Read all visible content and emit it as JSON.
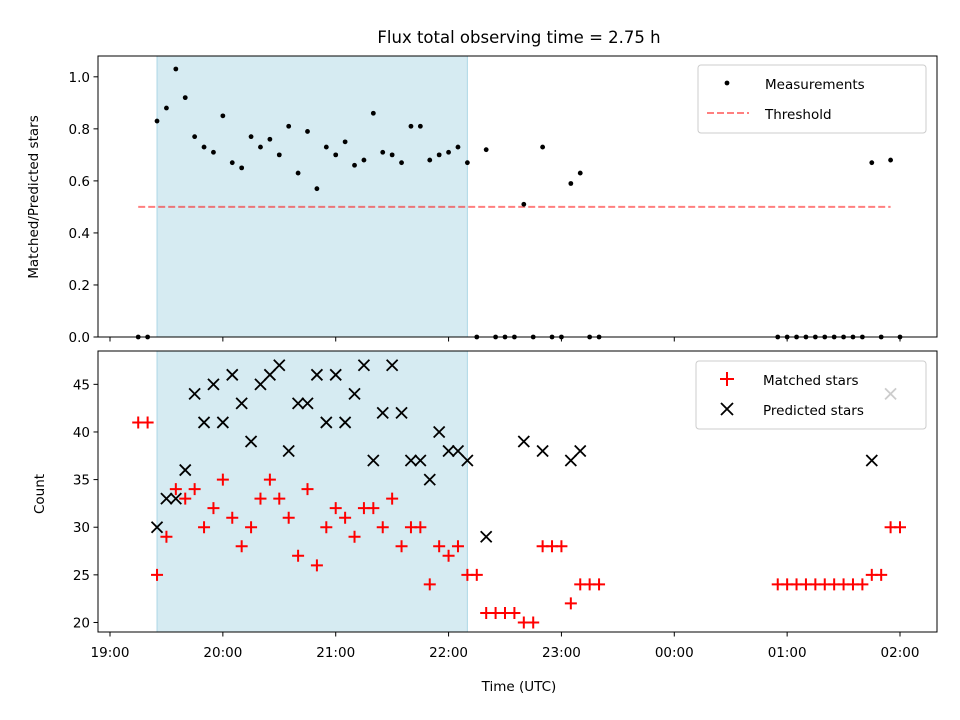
{
  "title": "Flux total observing time = 2.75 h",
  "xlabel": "Time (UTC)",
  "x_tick_labels": [
    "19:00",
    "20:00",
    "21:00",
    "22:00",
    "23:00",
    "00:00",
    "01:00",
    "02:00"
  ],
  "colors": {
    "band": "#add8e6",
    "threshold": "#ff0000",
    "matched": "#ff0000",
    "predicted": "#000000"
  },
  "chart_data": [
    {
      "type": "scatter",
      "ylabel": "Matched/Predicted stars",
      "xlim": [
        "19:00",
        "02:00"
      ],
      "ylim": [
        0,
        1.08
      ],
      "y_ticks": [
        "0.0",
        "0.2",
        "0.4",
        "0.6",
        "0.8",
        "1.0"
      ],
      "legend": {
        "placement": "upper right",
        "entries": [
          "Measurements",
          "Threshold"
        ]
      },
      "shaded_interval": [
        "19:25",
        "22:10"
      ],
      "threshold": {
        "name": "Threshold",
        "value": 0.5,
        "x_range": [
          "19:15",
          "01:55"
        ]
      },
      "series": [
        {
          "name": "Measurements",
          "points": [
            [
              "19:15",
              0.0
            ],
            [
              "19:20",
              0.0
            ],
            [
              "19:25",
              0.83
            ],
            [
              "19:30",
              0.88
            ],
            [
              "19:35",
              1.03
            ],
            [
              "19:40",
              0.92
            ],
            [
              "19:45",
              0.77
            ],
            [
              "19:50",
              0.73
            ],
            [
              "19:55",
              0.71
            ],
            [
              "20:00",
              0.85
            ],
            [
              "20:05",
              0.67
            ],
            [
              "20:10",
              0.65
            ],
            [
              "20:15",
              0.77
            ],
            [
              "20:20",
              0.73
            ],
            [
              "20:25",
              0.76
            ],
            [
              "20:30",
              0.7
            ],
            [
              "20:35",
              0.81
            ],
            [
              "20:40",
              0.63
            ],
            [
              "20:45",
              0.79
            ],
            [
              "20:50",
              0.57
            ],
            [
              "20:55",
              0.73
            ],
            [
              "21:00",
              0.7
            ],
            [
              "21:05",
              0.75
            ],
            [
              "21:10",
              0.66
            ],
            [
              "21:15",
              0.68
            ],
            [
              "21:20",
              0.86
            ],
            [
              "21:25",
              0.71
            ],
            [
              "21:30",
              0.7
            ],
            [
              "21:35",
              0.67
            ],
            [
              "21:40",
              0.81
            ],
            [
              "21:45",
              0.81
            ],
            [
              "21:50",
              0.68
            ],
            [
              "21:55",
              0.7
            ],
            [
              "22:00",
              0.71
            ],
            [
              "22:05",
              0.73
            ],
            [
              "22:10",
              0.67
            ],
            [
              "22:15",
              0.0
            ],
            [
              "22:20",
              0.72
            ],
            [
              "22:25",
              0.0
            ],
            [
              "22:30",
              0.0
            ],
            [
              "22:35",
              0.0
            ],
            [
              "22:40",
              0.51
            ],
            [
              "22:45",
              0.0
            ],
            [
              "22:50",
              0.73
            ],
            [
              "22:55",
              0.0
            ],
            [
              "23:00",
              0.0
            ],
            [
              "23:05",
              0.59
            ],
            [
              "23:10",
              0.63
            ],
            [
              "23:15",
              0.0
            ],
            [
              "23:20",
              0.0
            ],
            [
              "00:55",
              0.0
            ],
            [
              "01:00",
              0.0
            ],
            [
              "01:05",
              0.0
            ],
            [
              "01:10",
              0.0
            ],
            [
              "01:15",
              0.0
            ],
            [
              "01:20",
              0.0
            ],
            [
              "01:25",
              0.0
            ],
            [
              "01:30",
              0.0
            ],
            [
              "01:35",
              0.0
            ],
            [
              "01:40",
              0.0
            ],
            [
              "01:45",
              0.67
            ],
            [
              "01:50",
              0.0
            ],
            [
              "01:55",
              0.68
            ],
            [
              "02:00",
              0.0
            ]
          ]
        }
      ]
    },
    {
      "type": "scatter",
      "ylabel": "Count",
      "xlabel": "Time (UTC)",
      "xlim": [
        "19:00",
        "02:00"
      ],
      "ylim": [
        19,
        48.5
      ],
      "y_ticks": [
        "20",
        "25",
        "30",
        "35",
        "40",
        "45"
      ],
      "legend": {
        "placement": "upper right",
        "entries": [
          "Matched stars",
          "Predicted stars"
        ]
      },
      "shaded_interval": [
        "19:25",
        "22:10"
      ],
      "series": [
        {
          "name": "Matched stars",
          "marker": "+",
          "points": [
            [
              "19:15",
              41
            ],
            [
              "19:20",
              41
            ],
            [
              "19:25",
              25
            ],
            [
              "19:30",
              29
            ],
            [
              "19:35",
              34
            ],
            [
              "19:40",
              33
            ],
            [
              "19:45",
              34
            ],
            [
              "19:50",
              30
            ],
            [
              "19:55",
              32
            ],
            [
              "20:00",
              35
            ],
            [
              "20:05",
              31
            ],
            [
              "20:10",
              28
            ],
            [
              "20:15",
              30
            ],
            [
              "20:20",
              33
            ],
            [
              "20:25",
              35
            ],
            [
              "20:30",
              33
            ],
            [
              "20:35",
              31
            ],
            [
              "20:40",
              27
            ],
            [
              "20:45",
              34
            ],
            [
              "20:50",
              26
            ],
            [
              "20:55",
              30
            ],
            [
              "21:00",
              32
            ],
            [
              "21:05",
              31
            ],
            [
              "21:10",
              29
            ],
            [
              "21:15",
              32
            ],
            [
              "21:20",
              32
            ],
            [
              "21:25",
              30
            ],
            [
              "21:30",
              33
            ],
            [
              "21:35",
              28
            ],
            [
              "21:40",
              30
            ],
            [
              "21:45",
              30
            ],
            [
              "21:50",
              24
            ],
            [
              "21:55",
              28
            ],
            [
              "22:00",
              27
            ],
            [
              "22:05",
              28
            ],
            [
              "22:10",
              25
            ],
            [
              "22:15",
              25
            ],
            [
              "22:20",
              21
            ],
            [
              "22:25",
              21
            ],
            [
              "22:30",
              21
            ],
            [
              "22:35",
              21
            ],
            [
              "22:40",
              20
            ],
            [
              "22:45",
              20
            ],
            [
              "22:50",
              28
            ],
            [
              "22:55",
              28
            ],
            [
              "23:00",
              28
            ],
            [
              "23:05",
              22
            ],
            [
              "23:10",
              24
            ],
            [
              "23:15",
              24
            ],
            [
              "23:20",
              24
            ],
            [
              "00:55",
              24
            ],
            [
              "01:00",
              24
            ],
            [
              "01:05",
              24
            ],
            [
              "01:10",
              24
            ],
            [
              "01:15",
              24
            ],
            [
              "01:20",
              24
            ],
            [
              "01:25",
              24
            ],
            [
              "01:30",
              24
            ],
            [
              "01:35",
              24
            ],
            [
              "01:40",
              24
            ],
            [
              "01:45",
              25
            ],
            [
              "01:50",
              25
            ],
            [
              "01:55",
              30
            ],
            [
              "02:00",
              30
            ]
          ]
        },
        {
          "name": "Predicted stars",
          "marker": "x",
          "points": [
            [
              "19:25",
              30
            ],
            [
              "19:30",
              33
            ],
            [
              "19:35",
              33
            ],
            [
              "19:40",
              36
            ],
            [
              "19:45",
              44
            ],
            [
              "19:50",
              41
            ],
            [
              "19:55",
              45
            ],
            [
              "20:00",
              41
            ],
            [
              "20:05",
              46
            ],
            [
              "20:10",
              43
            ],
            [
              "20:15",
              39
            ],
            [
              "20:20",
              45
            ],
            [
              "20:25",
              46
            ],
            [
              "20:30",
              47
            ],
            [
              "20:35",
              38
            ],
            [
              "20:40",
              43
            ],
            [
              "20:45",
              43
            ],
            [
              "20:50",
              46
            ],
            [
              "20:55",
              41
            ],
            [
              "21:00",
              46
            ],
            [
              "21:05",
              41
            ],
            [
              "21:10",
              44
            ],
            [
              "21:15",
              47
            ],
            [
              "21:20",
              37
            ],
            [
              "21:25",
              42
            ],
            [
              "21:30",
              47
            ],
            [
              "21:35",
              42
            ],
            [
              "21:40",
              37
            ],
            [
              "21:45",
              37
            ],
            [
              "21:50",
              35
            ],
            [
              "21:55",
              40
            ],
            [
              "22:00",
              38
            ],
            [
              "22:05",
              38
            ],
            [
              "22:10",
              37
            ],
            [
              "22:20",
              29
            ],
            [
              "22:40",
              39
            ],
            [
              "22:50",
              38
            ],
            [
              "23:05",
              37
            ],
            [
              "23:10",
              38
            ],
            [
              "01:45",
              37
            ],
            [
              "01:55",
              44
            ]
          ]
        }
      ]
    }
  ]
}
